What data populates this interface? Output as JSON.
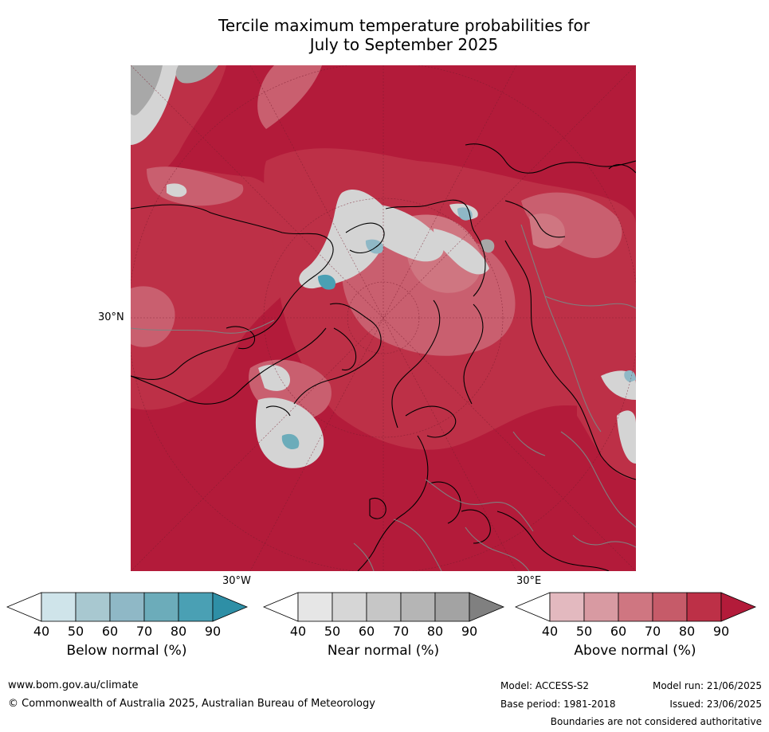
{
  "title_line1": "Tercile maximum temperature probabilities for",
  "title_line2": "July to September 2025",
  "map": {
    "lat_label": "30°N",
    "lon_label_left": "30°W",
    "lon_label_right": "30°E",
    "colors": {
      "ocean_above_90": "#b31b3a",
      "above_80": "#bd3047",
      "above_70": "#c95f6f",
      "above_60": "#cf7681",
      "near": "#d4d4d4",
      "near_strong": "#a3a3a3",
      "below": "#8fb8c6",
      "below_strong": "#4aa0b4",
      "coast": "#000000",
      "border": "#808080"
    }
  },
  "colorbars": [
    {
      "label": "Below normal (%)",
      "ticks": [
        "40",
        "50",
        "60",
        "70",
        "80",
        "90"
      ],
      "colors": [
        "#ffffff",
        "#cfe4ea",
        "#a8c8d0",
        "#8fb8c6",
        "#6cacba",
        "#4aa0b4",
        "#2e8fa6"
      ]
    },
    {
      "label": "Near normal (%)",
      "ticks": [
        "40",
        "50",
        "60",
        "70",
        "80",
        "90"
      ],
      "colors": [
        "#ffffff",
        "#e6e6e6",
        "#d6d6d6",
        "#c6c6c6",
        "#b5b5b5",
        "#a3a3a3",
        "#808080"
      ]
    },
    {
      "label": "Above normal (%)",
      "ticks": [
        "40",
        "50",
        "60",
        "70",
        "80",
        "90"
      ],
      "colors": [
        "#ffffff",
        "#e3b9bf",
        "#d89aa2",
        "#cf7681",
        "#c65b69",
        "#bd3047",
        "#b31b3a"
      ]
    }
  ],
  "footer": {
    "url": "www.bom.gov.au/climate",
    "copyright": "© Commonwealth of Australia 2025, Australian Bureau of Meteorology",
    "model": "Model: ACCESS-S2",
    "model_run": "Model run: 21/06/2025",
    "base_period": "Base period: 1981-2018",
    "issued": "Issued: 23/06/2025",
    "disclaimer": "Boundaries are not considered authoritative"
  }
}
